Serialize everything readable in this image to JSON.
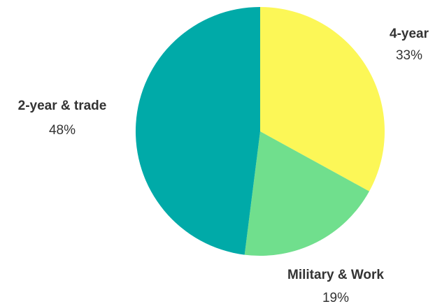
{
  "chart_data": {
    "type": "pie",
    "slices": [
      {
        "label": "4-year",
        "value": 33,
        "value_label": "33%",
        "color": "#fcf757"
      },
      {
        "label": "Military & Work",
        "value": 19,
        "value_label": "19%",
        "color": "#70df8d"
      },
      {
        "label": "2-year & trade",
        "value": 48,
        "value_label": "48%",
        "color": "#00aaa8"
      }
    ],
    "start_angle": "12 o'clock",
    "direction": "clockwise"
  }
}
